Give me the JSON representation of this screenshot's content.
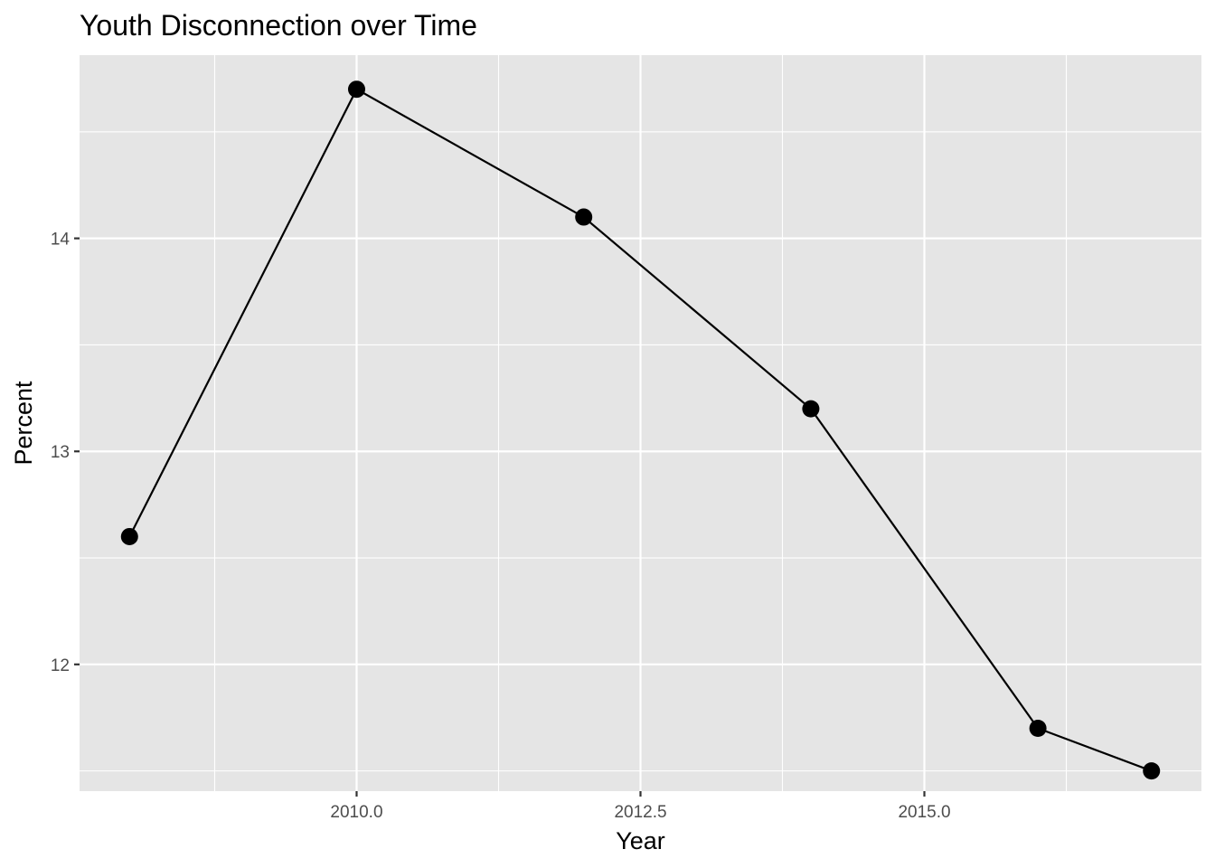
{
  "chart_data": {
    "type": "line",
    "title": "Youth Disconnection over Time",
    "xlabel": "Year",
    "ylabel": "Percent",
    "x": [
      2008,
      2010,
      2012,
      2014,
      2016,
      2017
    ],
    "y": [
      12.6,
      14.7,
      14.1,
      13.2,
      11.7,
      11.5
    ],
    "xlim": [
      2007.56,
      2017.44
    ],
    "ylim": [
      11.405,
      14.86
    ],
    "x_ticks": [
      {
        "value": 2010,
        "label": "2010.0"
      },
      {
        "value": 2012.5,
        "label": "2012.5"
      },
      {
        "value": 2015,
        "label": "2015.0"
      }
    ],
    "x_minor_ticks": [
      2008.75,
      2011.25,
      2013.75,
      2016.25
    ],
    "y_ticks": [
      {
        "value": 12,
        "label": "12"
      },
      {
        "value": 13,
        "label": "13"
      },
      {
        "value": 14,
        "label": "14"
      }
    ],
    "y_minor_ticks": [
      11.5,
      12.5,
      13.5,
      14.5
    ],
    "grid": true,
    "legend": "none",
    "colors": {
      "panel": "#e5e5e5",
      "grid": "#ffffff",
      "series": "#000000"
    }
  }
}
